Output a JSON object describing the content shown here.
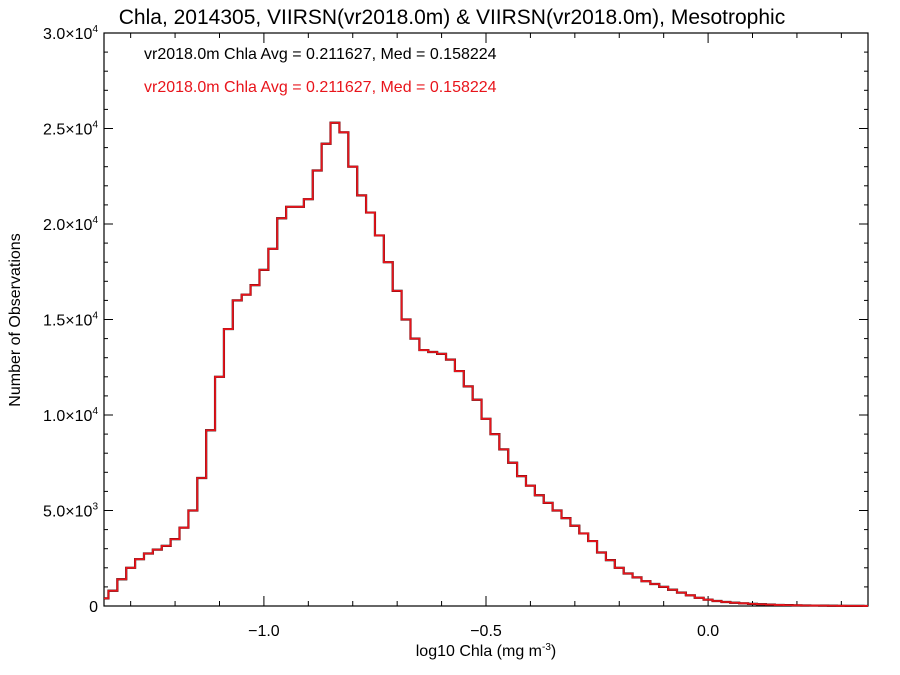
{
  "chart_data": {
    "type": "histogram",
    "title": "Chla, 2014305, VIIRSN(vr2018.0m) & VIIRSN(vr2018.0m), Mesotrophic",
    "xlabel": "log10 Chla (mg m",
    "xlabel_sup": "-3",
    "xlabel_end": ")",
    "ylabel": "Number of Observations",
    "xlim": [
      -1.36,
      0.36
    ],
    "ylim": [
      0,
      30000
    ],
    "xticks": [
      {
        "value": -1.0,
        "label": "−1.0"
      },
      {
        "value": -0.5,
        "label": "−0.5"
      },
      {
        "value": 0.0,
        "label": "0.0"
      }
    ],
    "yticks": [
      {
        "value": 0,
        "mant": "0",
        "exp": ""
      },
      {
        "value": 5000,
        "mant": "5.0×10",
        "exp": "3"
      },
      {
        "value": 10000,
        "mant": "1.0×10",
        "exp": "4"
      },
      {
        "value": 15000,
        "mant": "1.5×10",
        "exp": "4"
      },
      {
        "value": 20000,
        "mant": "2.0×10",
        "exp": "4"
      },
      {
        "value": 25000,
        "mant": "2.5×10",
        "exp": "4"
      },
      {
        "value": 30000,
        "mant": "3.0×10",
        "exp": "4"
      }
    ],
    "annotations": [
      {
        "text": "vr2018.0m Chla Avg = 0.211627, Med = 0.158224",
        "color": "#000000"
      },
      {
        "text": "vr2018.0m Chla Avg = 0.211627, Med = 0.158224",
        "color": "#e8141b"
      }
    ],
    "series": [
      {
        "color_main": "#e8141b",
        "color_under": "#000000",
        "points": [
          [
            -1.36,
            400
          ],
          [
            -1.34,
            800
          ],
          [
            -1.32,
            1400
          ],
          [
            -1.3,
            2000
          ],
          [
            -1.28,
            2450
          ],
          [
            -1.26,
            2750
          ],
          [
            -1.24,
            2950
          ],
          [
            -1.22,
            3150
          ],
          [
            -1.2,
            3500
          ],
          [
            -1.18,
            4100
          ],
          [
            -1.16,
            5000
          ],
          [
            -1.14,
            6700
          ],
          [
            -1.12,
            9200
          ],
          [
            -1.1,
            12000
          ],
          [
            -1.08,
            14500
          ],
          [
            -1.06,
            16000
          ],
          [
            -1.04,
            16300
          ],
          [
            -1.02,
            16800
          ],
          [
            -1.0,
            17600
          ],
          [
            -0.98,
            18700
          ],
          [
            -0.96,
            20300
          ],
          [
            -0.94,
            20900
          ],
          [
            -0.92,
            20900
          ],
          [
            -0.9,
            21300
          ],
          [
            -0.88,
            22800
          ],
          [
            -0.86,
            24200
          ],
          [
            -0.84,
            25300
          ],
          [
            -0.82,
            24800
          ],
          [
            -0.8,
            23000
          ],
          [
            -0.78,
            21500
          ],
          [
            -0.76,
            20600
          ],
          [
            -0.74,
            19400
          ],
          [
            -0.72,
            18000
          ],
          [
            -0.7,
            16500
          ],
          [
            -0.68,
            15000
          ],
          [
            -0.66,
            14000
          ],
          [
            -0.64,
            13400
          ],
          [
            -0.62,
            13300
          ],
          [
            -0.6,
            13200
          ],
          [
            -0.58,
            12900
          ],
          [
            -0.56,
            12300
          ],
          [
            -0.54,
            11500
          ],
          [
            -0.52,
            10800
          ],
          [
            -0.5,
            9800
          ],
          [
            -0.48,
            9000
          ],
          [
            -0.46,
            8200
          ],
          [
            -0.44,
            7500
          ],
          [
            -0.42,
            6800
          ],
          [
            -0.4,
            6300
          ],
          [
            -0.38,
            5800
          ],
          [
            -0.36,
            5400
          ],
          [
            -0.34,
            5000
          ],
          [
            -0.32,
            4600
          ],
          [
            -0.3,
            4200
          ],
          [
            -0.28,
            3800
          ],
          [
            -0.26,
            3400
          ],
          [
            -0.24,
            2800
          ],
          [
            -0.22,
            2400
          ],
          [
            -0.2,
            2000
          ],
          [
            -0.18,
            1700
          ],
          [
            -0.16,
            1500
          ],
          [
            -0.14,
            1300
          ],
          [
            -0.12,
            1150
          ],
          [
            -0.1,
            1000
          ],
          [
            -0.08,
            850
          ],
          [
            -0.06,
            700
          ],
          [
            -0.04,
            560
          ],
          [
            -0.02,
            430
          ],
          [
            0.0,
            330
          ],
          [
            0.02,
            260
          ],
          [
            0.04,
            210
          ],
          [
            0.06,
            170
          ],
          [
            0.08,
            140
          ],
          [
            0.1,
            110
          ],
          [
            0.12,
            90
          ],
          [
            0.14,
            70
          ],
          [
            0.16,
            55
          ],
          [
            0.18,
            45
          ],
          [
            0.2,
            35
          ],
          [
            0.22,
            28
          ],
          [
            0.24,
            22
          ],
          [
            0.26,
            18
          ],
          [
            0.28,
            14
          ],
          [
            0.3,
            10
          ],
          [
            0.32,
            8
          ],
          [
            0.34,
            5
          ],
          [
            0.36,
            3
          ]
        ]
      }
    ]
  }
}
